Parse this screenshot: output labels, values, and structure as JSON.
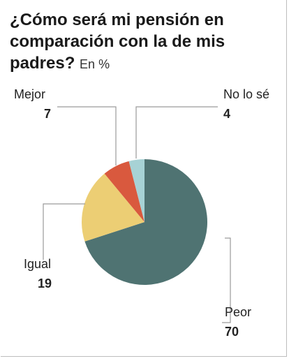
{
  "title": "¿Cómo será mi pensión en comparación con la de mis padres?",
  "unit": "En %",
  "chart_data": {
    "type": "pie",
    "title": "¿Cómo será mi pensión en comparación con la de mis padres?",
    "unit": "En %",
    "slices": [
      {
        "label": "Peor",
        "value": 70,
        "color": "#4f7372"
      },
      {
        "label": "Igual",
        "value": 19,
        "color": "#ecce74"
      },
      {
        "label": "Mejor",
        "value": 7,
        "color": "#d9593e"
      },
      {
        "label": "No lo sé",
        "value": 4,
        "color": "#a7d2d5"
      }
    ]
  }
}
